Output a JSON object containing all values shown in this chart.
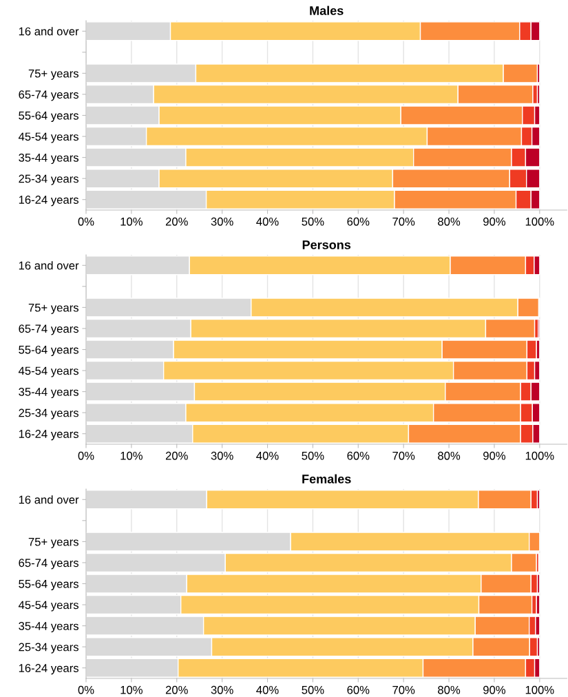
{
  "chart_data": [
    {
      "type": "bar",
      "title": "Males",
      "orientation": "horizontal",
      "stacked": true,
      "grid": "x",
      "categories": [
        "16 and over",
        null,
        "75+ years",
        "65-74 years",
        "55-64 years",
        "45-54 years",
        "35-44 years",
        "25-34 years",
        "16-24 years"
      ],
      "xlim": [
        0,
        106
      ],
      "xticks": [
        {
          "value": 0,
          "label": "0%"
        },
        {
          "value": 10,
          "label": "10%"
        },
        {
          "value": 20,
          "label": "20%"
        },
        {
          "value": 30,
          "label": "30%"
        },
        {
          "value": 40,
          "label": "40%"
        },
        {
          "value": 50,
          "label": "50%"
        },
        {
          "value": 60,
          "label": "60%"
        },
        {
          "value": 70,
          "label": "70%"
        },
        {
          "value": 80,
          "label": "80%"
        },
        {
          "value": 90,
          "label": "90%"
        },
        {
          "value": 100,
          "label": "100%"
        }
      ],
      "series": [
        {
          "color": "#d9d9d9",
          "values": [
            18.6,
            null,
            24.2,
            14.9,
            16.1,
            13.3,
            22.0,
            16.1,
            26.5
          ]
        },
        {
          "color": "#fdca5f",
          "values": [
            55.1,
            null,
            67.8,
            67.1,
            53.3,
            61.9,
            50.2,
            51.5,
            41.5
          ]
        },
        {
          "color": "#fc8d3d",
          "values": [
            21.9,
            null,
            7.5,
            16.5,
            26.8,
            20.8,
            21.6,
            25.8,
            26.8
          ]
        },
        {
          "color": "#ef3b23",
          "values": [
            2.5,
            null,
            null,
            1.0,
            2.7,
            2.3,
            3.1,
            3.7,
            3.3
          ]
        },
        {
          "color": "#bd0026",
          "values": [
            1.9,
            null,
            0.5,
            0.5,
            1.1,
            1.7,
            3.1,
            2.9,
            1.9
          ]
        }
      ]
    },
    {
      "type": "bar",
      "title": "Persons",
      "orientation": "horizontal",
      "stacked": true,
      "grid": "x",
      "categories": [
        "16 and over",
        null,
        "75+ years",
        "65-74 years",
        "55-64 years",
        "45-54 years",
        "35-44 years",
        "25-34 years",
        "16-24 years"
      ],
      "xlim": [
        0,
        106
      ],
      "xticks": [
        {
          "value": 0,
          "label": "0%"
        },
        {
          "value": 10,
          "label": "10%"
        },
        {
          "value": 20,
          "label": "20%"
        },
        {
          "value": 30,
          "label": "30%"
        },
        {
          "value": 40,
          "label": "40%"
        },
        {
          "value": 50,
          "label": "50%"
        },
        {
          "value": 60,
          "label": "60%"
        },
        {
          "value": 70,
          "label": "70%"
        },
        {
          "value": 80,
          "label": "80%"
        },
        {
          "value": 90,
          "label": "90%"
        },
        {
          "value": 100,
          "label": "100%"
        }
      ],
      "series": [
        {
          "color": "#d9d9d9",
          "values": [
            22.8,
            null,
            36.4,
            23.1,
            19.3,
            17.1,
            23.9,
            22.0,
            23.5
          ]
        },
        {
          "color": "#fdca5f",
          "values": [
            57.5,
            null,
            58.8,
            65.0,
            59.2,
            63.9,
            55.3,
            54.6,
            47.6
          ]
        },
        {
          "color": "#fc8d3d",
          "values": [
            16.6,
            null,
            4.6,
            10.8,
            18.7,
            16.2,
            16.6,
            19.2,
            24.7
          ]
        },
        {
          "color": "#ef3b23",
          "values": [
            1.9,
            null,
            0.1,
            0.8,
            2.1,
            1.7,
            2.3,
            2.6,
            2.7
          ]
        },
        {
          "color": "#bd0026",
          "values": [
            1.2,
            null,
            0.1,
            0.3,
            0.7,
            1.1,
            1.9,
            1.6,
            1.5
          ]
        }
      ]
    },
    {
      "type": "bar",
      "title": "Females",
      "orientation": "horizontal",
      "stacked": true,
      "grid": "x",
      "categories": [
        "16 and over",
        null,
        "75+ years",
        "65-74 years",
        "55-64 years",
        "45-54 years",
        "35-44 years",
        "25-34 years",
        "16-24 years"
      ],
      "xlim": [
        0,
        106
      ],
      "xticks": [
        {
          "value": 0,
          "label": "0%"
        },
        {
          "value": 10,
          "label": "10%"
        },
        {
          "value": 20,
          "label": "20%"
        },
        {
          "value": 30,
          "label": "30%"
        },
        {
          "value": 40,
          "label": "40%"
        },
        {
          "value": 50,
          "label": "50%"
        },
        {
          "value": 60,
          "label": "60%"
        },
        {
          "value": 70,
          "label": "70%"
        },
        {
          "value": 80,
          "label": "80%"
        },
        {
          "value": 90,
          "label": "90%"
        },
        {
          "value": 100,
          "label": "100%"
        }
      ],
      "series": [
        {
          "color": "#d9d9d9",
          "values": [
            26.6,
            null,
            45.1,
            30.7,
            22.2,
            20.9,
            25.9,
            27.7,
            20.3
          ]
        },
        {
          "color": "#fdca5f",
          "values": [
            59.9,
            null,
            52.6,
            63.1,
            64.9,
            65.7,
            59.9,
            57.6,
            54.0
          ]
        },
        {
          "color": "#fc8d3d",
          "values": [
            11.6,
            null,
            2.3,
            5.5,
            11.0,
            11.7,
            11.9,
            12.5,
            22.6
          ]
        },
        {
          "color": "#ef3b23",
          "values": [
            1.4,
            null,
            null,
            0.5,
            1.4,
            1.0,
            1.4,
            1.7,
            2.0
          ]
        },
        {
          "color": "#bd0026",
          "values": [
            0.5,
            null,
            null,
            0.2,
            0.5,
            0.7,
            0.9,
            0.5,
            1.1
          ]
        }
      ]
    }
  ]
}
